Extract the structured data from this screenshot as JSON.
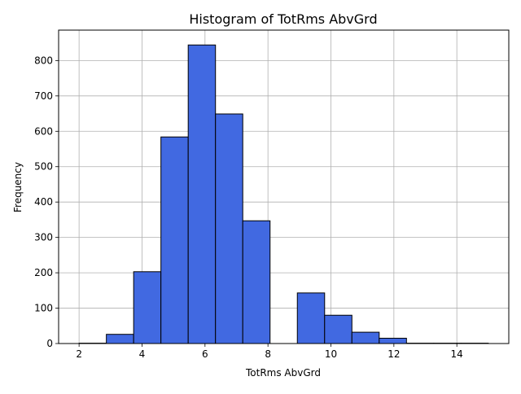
{
  "chart_data": {
    "type": "bar",
    "title": "Histogram of TotRms AbvGrd",
    "xlabel": "TotRms AbvGrd",
    "ylabel": "Frequency",
    "bins": [
      {
        "start": 2.0,
        "end": 2.866667,
        "value": 1
      },
      {
        "start": 2.866667,
        "end": 3.733333,
        "value": 26
      },
      {
        "start": 3.733333,
        "end": 4.6,
        "value": 203
      },
      {
        "start": 4.6,
        "end": 5.466667,
        "value": 584
      },
      {
        "start": 5.466667,
        "end": 6.333333,
        "value": 844
      },
      {
        "start": 6.333333,
        "end": 7.2,
        "value": 649
      },
      {
        "start": 7.2,
        "end": 8.066667,
        "value": 347
      },
      {
        "start": 8.066667,
        "end": 8.933333,
        "value": 0
      },
      {
        "start": 8.933333,
        "end": 9.8,
        "value": 143
      },
      {
        "start": 9.8,
        "end": 10.666667,
        "value": 80
      },
      {
        "start": 10.666667,
        "end": 11.533333,
        "value": 32
      },
      {
        "start": 11.533333,
        "end": 12.4,
        "value": 15
      },
      {
        "start": 12.4,
        "end": 13.266667,
        "value": 1
      },
      {
        "start": 13.266667,
        "end": 14.133333,
        "value": 1
      },
      {
        "start": 14.133333,
        "end": 15.0,
        "value": 1
      }
    ],
    "xlim": [
      1.35,
      15.65
    ],
    "ylim": [
      0,
      886
    ],
    "xticks": [
      2,
      4,
      6,
      8,
      10,
      12,
      14
    ],
    "yticks": [
      0,
      100,
      200,
      300,
      400,
      500,
      600,
      700,
      800
    ],
    "grid": true,
    "bar_color": "#4169e1",
    "edge_color": "#000000",
    "grid_color": "#b0b0b0"
  }
}
